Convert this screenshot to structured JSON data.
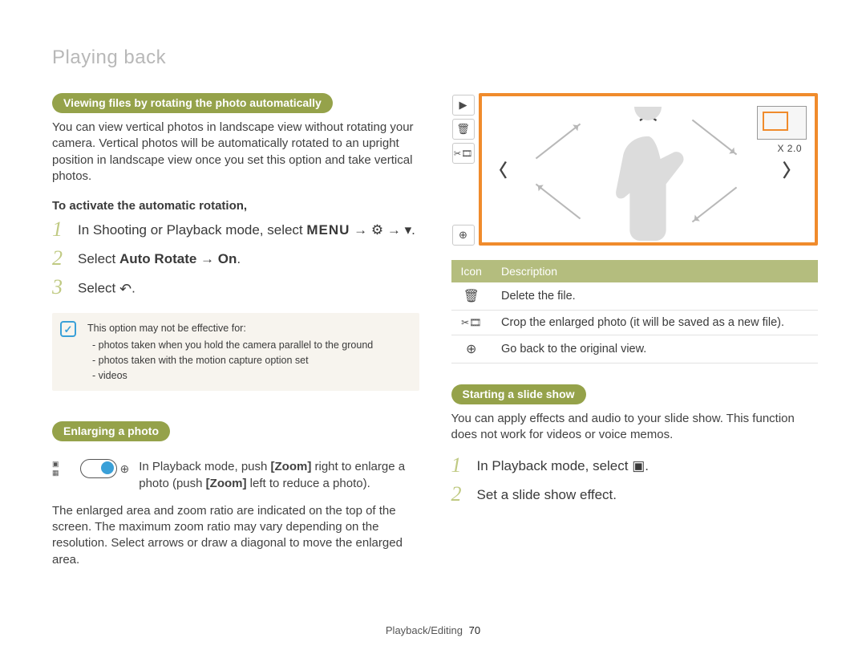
{
  "page": {
    "title": "Playing back",
    "footer_label": "Playback/Editing",
    "footer_page": "70"
  },
  "left": {
    "sec1_heading": "Viewing files by rotating the photo automatically",
    "sec1_body": "You can view vertical photos in landscape view without rotating your camera. Vertical photos will be automatically rotated to an upright position in landscape view once you set this option and take vertical photos.",
    "sec1_subhead": "To activate the automatic rotation,",
    "steps": [
      {
        "num": "1",
        "html": "In Shooting or Playback mode, select <span class='menu-word'>MENU</span> → <span class='inline-icon'>⚙</span> → <span class='inline-icon'>▾</span>."
      },
      {
        "num": "2",
        "html": "Select <span class='b'>Auto Rotate</span> → <span class='b'>On</span>."
      },
      {
        "num": "3",
        "html": "Select <span class='inline-icon' style='font-size:18px;'>↶</span>."
      }
    ],
    "note_lead": "This option may not be effective for:",
    "note_items": [
      "photos taken when you hold the camera parallel to the ground",
      "photos taken with the motion capture option set",
      "videos"
    ],
    "sec2_heading": "Enlarging a photo",
    "sec2_zoom_text_a": "In Playback mode, push ",
    "sec2_zoom_text_b": " right to enlarge a photo (push ",
    "sec2_zoom_text_c": " left to reduce a photo).",
    "zoom_word": "Zoom",
    "sec2_after": "The enlarged area and zoom ratio are indicated on the top of the screen. The maximum zoom ratio may vary depending on the resolution. Select arrows or draw a diagonal to move the enlarged area."
  },
  "right": {
    "zoom_label": "X 2.0",
    "table": {
      "headers": [
        "Icon",
        "Description"
      ],
      "rows": [
        {
          "icon": "🗑",
          "desc": "Delete the file."
        },
        {
          "icon": "✂🎞",
          "desc": "Crop the enlarged photo (it will be saved as a new file)."
        },
        {
          "icon": "⊕",
          "desc": "Go back to the original view."
        }
      ]
    },
    "sec3_heading": "Starting a slide show",
    "sec3_body": "You can apply effects and audio to your slide show. This function does not work for videos or voice memos.",
    "steps": [
      {
        "num": "1",
        "html": "In Playback mode, select <span class='inline-icon'>▣</span>."
      },
      {
        "num": "2",
        "html": "Set a slide show effect."
      }
    ]
  },
  "colors": {
    "pill_bg": "#95a24a",
    "stepnum": "#c0ca83",
    "note_bg": "#f7f4ee",
    "note_icon": "#3aa0d8",
    "preview_border": "#f08b2c",
    "table_header_bg": "#b4bd7e",
    "title_color": "#b8b8b8"
  }
}
